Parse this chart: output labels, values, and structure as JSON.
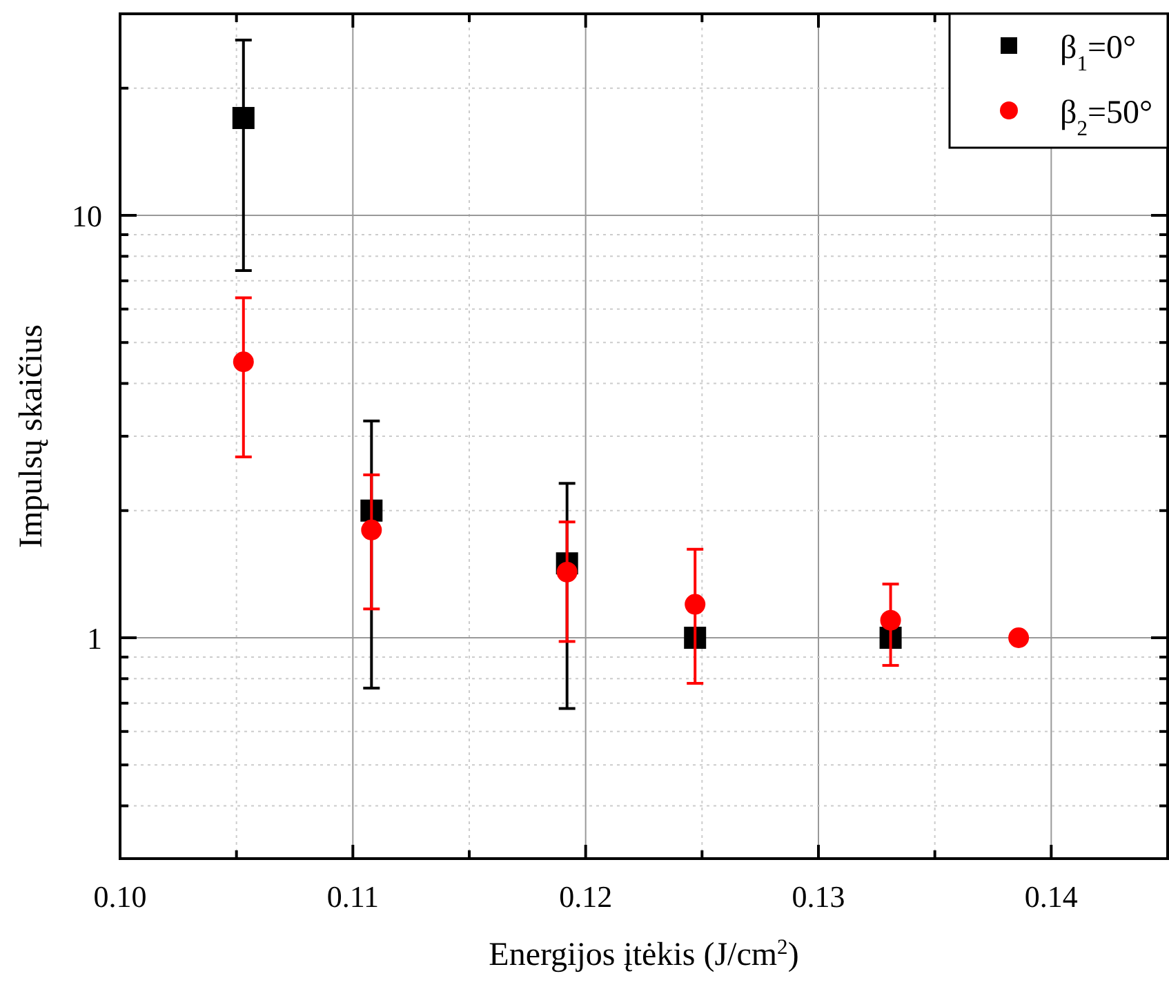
{
  "chart_data": {
    "type": "scatter",
    "xlabel": "Energijos įtėkis (J/cm$^{2}$)",
    "ylabel": "Impulsų skaičius",
    "log": "y",
    "grid": true,
    "legend": "top right",
    "xlim": [
      0.1,
      0.145
    ],
    "ylim": [
      0.3,
      30
    ],
    "xticks": [
      {
        "value": 0.1,
        "label": "0.10"
      },
      {
        "value": 0.105,
        "label": null
      },
      0.11,
      {
        "value": 0.115,
        "label": null
      },
      {
        "value": 0.12,
        "label": "0.12"
      },
      {
        "value": 0.125,
        "label": null
      },
      0.13,
      {
        "value": 0.135,
        "label": null
      },
      0.14
    ],
    "yticks": [
      {
        "value": 0.3,
        "label": null
      },
      {
        "value": 0.4,
        "label": null
      },
      {
        "value": 0.5,
        "label": null
      },
      {
        "value": 0.6,
        "label": null
      },
      {
        "value": 0.7,
        "label": null
      },
      {
        "value": 0.8,
        "label": null
      },
      {
        "value": 0.9,
        "label": null
      },
      1,
      {
        "value": 2,
        "label": null
      },
      {
        "value": 3,
        "label": null
      },
      {
        "value": 4,
        "label": null
      },
      {
        "value": 5,
        "label": null
      },
      {
        "value": 6,
        "label": null
      },
      {
        "value": 7,
        "label": null
      },
      {
        "value": 8,
        "label": null
      },
      {
        "value": 9,
        "label": null
      },
      10,
      {
        "value": 20,
        "label": null
      },
      {
        "value": 30,
        "label": null
      }
    ],
    "x": [
      0.1053,
      0.1108,
      0.1192,
      0.1247,
      0.1331,
      0.1386
    ],
    "series": [
      {
        "name": "β$_{1}$=0°",
        "color": "#000000",
        "marker": "square",
        "values": [
          17,
          2.0,
          1.5,
          1,
          1,
          null
        ],
        "errors": [
          [
            7.4,
            26
          ],
          [
            0.76,
            3.26
          ],
          [
            0.68,
            2.32
          ],
          null,
          null,
          null
        ]
      },
      {
        "name": "β$_{2}$=50°",
        "color": "#ff0000",
        "marker": "circle",
        "values": [
          4.5,
          1.8,
          1.43,
          1.2,
          1.1,
          1
        ],
        "errors": [
          [
            2.68,
            6.38
          ],
          [
            1.17,
            2.43
          ],
          [
            0.98,
            1.88
          ],
          [
            0.78,
            1.62
          ],
          [
            0.86,
            1.34
          ],
          null
        ]
      }
    ]
  }
}
